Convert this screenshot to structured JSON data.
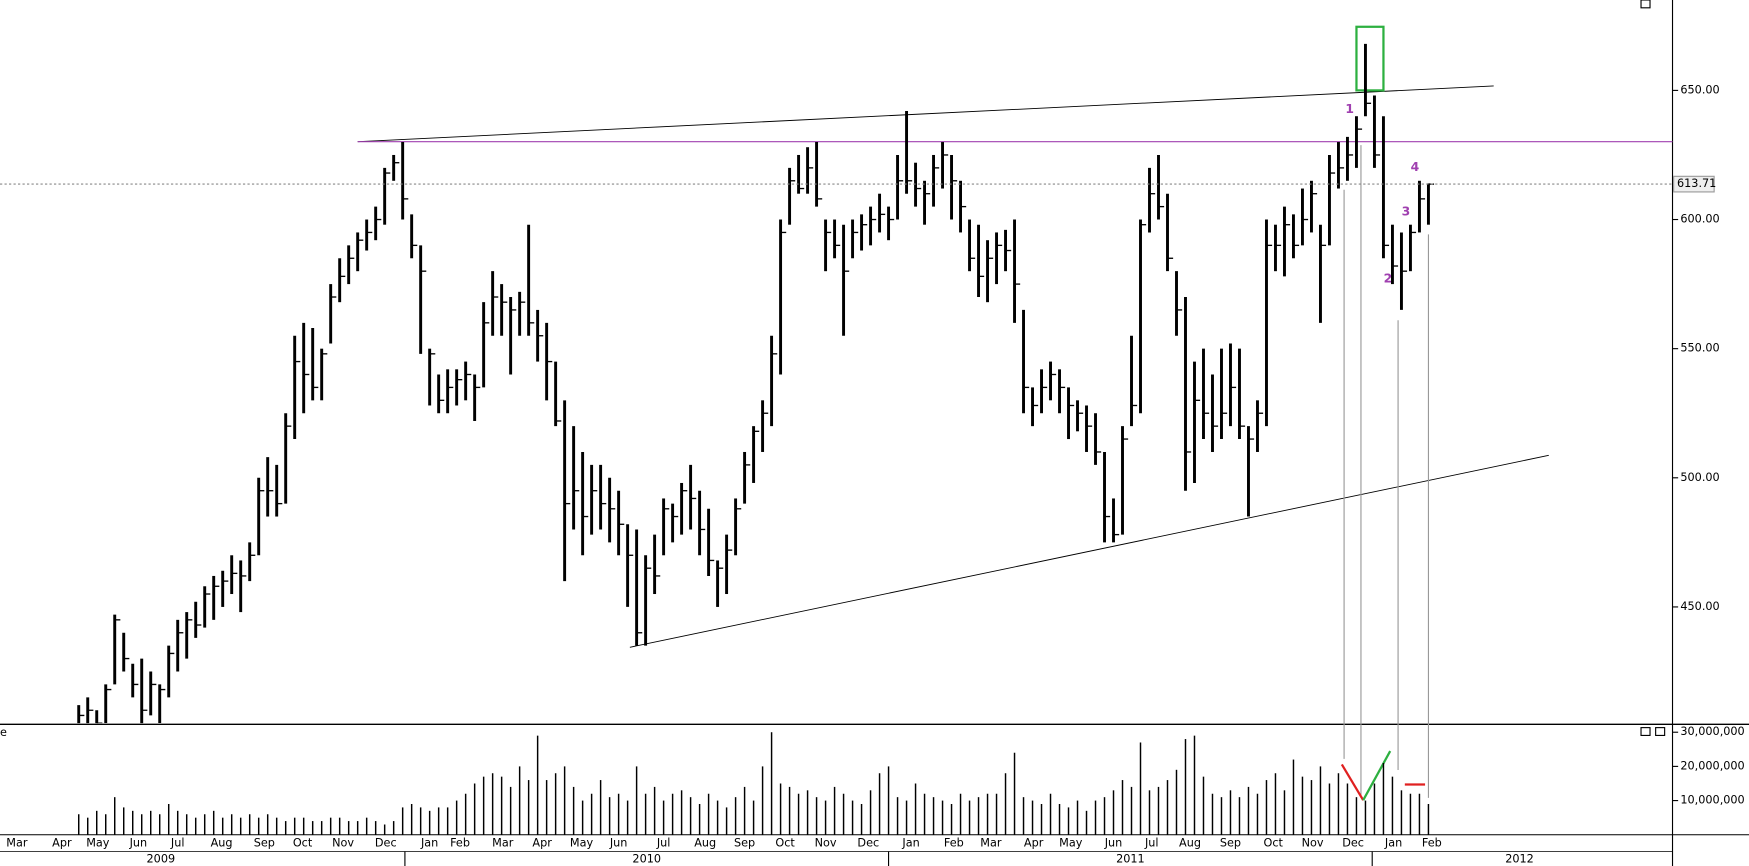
{
  "chart_data": [
    {
      "type": "ohlc",
      "high": [
        412,
        415,
        410,
        420,
        447,
        440,
        428,
        430,
        425,
        420,
        435,
        445,
        448,
        452,
        458,
        462,
        464,
        470,
        468,
        475,
        500,
        508,
        505,
        525,
        555,
        560,
        558,
        550,
        575,
        585,
        590,
        595,
        600,
        605,
        620,
        625,
        630,
        602,
        590,
        550,
        540,
        542,
        542,
        545,
        540,
        568,
        580,
        575,
        570,
        572,
        598,
        565,
        560,
        545,
        530,
        520,
        510,
        505,
        505,
        500,
        495,
        482,
        480,
        470,
        478,
        492,
        490,
        498,
        505,
        495,
        488,
        468,
        478,
        492,
        510,
        520,
        530,
        555,
        600,
        620,
        625,
        628,
        630,
        600,
        600,
        598,
        600,
        602,
        605,
        610,
        605,
        625,
        642,
        622,
        615,
        625,
        630,
        625,
        615,
        600,
        598,
        592,
        595,
        596,
        600,
        565,
        535,
        542,
        545,
        542,
        535,
        530,
        528,
        525,
        510,
        492,
        520,
        555,
        600,
        620,
        625,
        610,
        580,
        570,
        545,
        550,
        540,
        550,
        552,
        550,
        520,
        530,
        600,
        598,
        605,
        602,
        612,
        615,
        598,
        625,
        630,
        632,
        640,
        668,
        648,
        640,
        598,
        595,
        598,
        615,
        614
      ],
      "low": [
        400,
        400,
        400,
        405,
        420,
        425,
        415,
        400,
        408,
        405,
        415,
        425,
        430,
        438,
        442,
        445,
        450,
        455,
        448,
        460,
        470,
        485,
        485,
        490,
        515,
        525,
        530,
        530,
        552,
        568,
        575,
        580,
        588,
        592,
        598,
        615,
        600,
        585,
        548,
        528,
        525,
        525,
        528,
        530,
        522,
        535,
        555,
        555,
        540,
        555,
        555,
        545,
        530,
        520,
        460,
        480,
        470,
        478,
        480,
        475,
        470,
        450,
        435,
        435,
        455,
        470,
        475,
        478,
        480,
        470,
        462,
        450,
        455,
        470,
        490,
        498,
        510,
        520,
        540,
        598,
        610,
        610,
        605,
        580,
        585,
        555,
        585,
        588,
        590,
        595,
        592,
        600,
        610,
        605,
        598,
        605,
        612,
        600,
        595,
        580,
        570,
        568,
        575,
        580,
        560,
        525,
        520,
        525,
        530,
        525,
        515,
        518,
        510,
        505,
        475,
        475,
        478,
        520,
        525,
        595,
        600,
        580,
        555,
        495,
        498,
        515,
        510,
        515,
        520,
        515,
        485,
        510,
        520,
        580,
        578,
        585,
        590,
        595,
        560,
        590,
        612,
        615,
        620,
        640,
        620,
        585,
        575,
        565,
        580,
        595,
        598
      ],
      "close": [
        408,
        410,
        405,
        418,
        445,
        430,
        420,
        410,
        420,
        418,
        432,
        440,
        445,
        443,
        455,
        458,
        460,
        463,
        462,
        470,
        495,
        495,
        490,
        520,
        545,
        540,
        535,
        548,
        570,
        578,
        585,
        592,
        595,
        600,
        618,
        622,
        608,
        590,
        580,
        548,
        530,
        535,
        538,
        540,
        535,
        560,
        570,
        568,
        565,
        568,
        560,
        555,
        545,
        522,
        490,
        495,
        485,
        495,
        490,
        488,
        482,
        470,
        440,
        465,
        462,
        488,
        485,
        495,
        492,
        480,
        468,
        465,
        472,
        488,
        505,
        518,
        525,
        548,
        595,
        615,
        612,
        620,
        608,
        595,
        590,
        580,
        595,
        598,
        600,
        602,
        600,
        615,
        615,
        612,
        610,
        620,
        625,
        615,
        605,
        585,
        578,
        585,
        590,
        588,
        575,
        535,
        528,
        535,
        540,
        535,
        528,
        525,
        520,
        510,
        485,
        478,
        515,
        528,
        598,
        610,
        605,
        585,
        565,
        510,
        530,
        525,
        520,
        525,
        535,
        520,
        515,
        525,
        590,
        590,
        598,
        590,
        600,
        610,
        590,
        618,
        620,
        625,
        635,
        645,
        625,
        590,
        582,
        580,
        595,
        608,
        613.71
      ],
      "color": "#000000",
      "ylim": [
        405,
        685
      ],
      "yticks": [
        {
          "value": 450,
          "label": "450.00"
        },
        {
          "value": 500,
          "label": "500.00"
        },
        {
          "value": 550,
          "label": "550.00"
        },
        {
          "value": 600,
          "label": "600.00"
        },
        {
          "value": 650,
          "label": "650.00"
        }
      ],
      "annotations": [
        "1",
        "2",
        "3",
        "4"
      ]
    },
    {
      "type": "bar",
      "label": "e",
      "values": [
        6000000,
        5000000,
        7000000,
        6000000,
        11000000,
        8000000,
        7000000,
        6000000,
        7000000,
        6000000,
        9000000,
        7000000,
        6000000,
        5000000,
        6000000,
        7000000,
        5000000,
        6000000,
        5000000,
        6000000,
        5000000,
        6000000,
        5000000,
        4000000,
        5000000,
        5000000,
        4000000,
        4000000,
        5000000,
        5000000,
        4000000,
        4000000,
        5000000,
        4000000,
        3000000,
        4000000,
        8000000,
        9000000,
        8000000,
        7000000,
        8000000,
        8000000,
        10000000,
        12000000,
        15000000,
        17000000,
        18000000,
        17000000,
        14000000,
        20000000,
        16000000,
        29000000,
        16000000,
        18000000,
        20000000,
        14000000,
        10000000,
        12000000,
        16000000,
        11000000,
        12000000,
        10000000,
        20000000,
        12000000,
        14000000,
        10000000,
        12000000,
        13000000,
        11000000,
        9000000,
        12000000,
        10000000,
        8000000,
        11000000,
        14000000,
        10000000,
        20000000,
        30000000,
        15000000,
        14000000,
        12000000,
        13000000,
        11000000,
        10000000,
        14000000,
        12000000,
        10000000,
        9000000,
        13000000,
        18000000,
        20000000,
        11000000,
        10000000,
        15000000,
        12000000,
        11000000,
        10000000,
        9000000,
        12000000,
        10000000,
        11000000,
        12000000,
        12000000,
        18000000,
        24000000,
        11000000,
        10000000,
        9000000,
        12000000,
        9000000,
        8000000,
        10000000,
        7000000,
        10000000,
        11000000,
        13000000,
        16000000,
        14000000,
        27000000,
        13000000,
        14000000,
        16000000,
        19000000,
        28000000,
        29000000,
        17000000,
        12000000,
        11000000,
        13000000,
        11000000,
        14000000,
        12000000,
        16000000,
        18000000,
        13000000,
        22000000,
        17000000,
        16000000,
        20000000,
        15000000,
        18000000,
        15000000,
        11000000,
        10000000,
        15000000,
        21000000,
        17000000,
        13000000,
        12000000,
        12000000,
        9000000
      ],
      "color": "#000000",
      "ylim": [
        0,
        32000000
      ],
      "yticks": [
        {
          "value": 10000000,
          "label": "10,000,000"
        },
        {
          "value": 20000000,
          "label": "20,000,000"
        },
        {
          "value": 30000000,
          "label": "30,000,000"
        }
      ],
      "xlim": [
        -8.75,
        177.125
      ],
      "xticks": [
        {
          "value": -6.875,
          "label": "Mar"
        },
        {
          "value": -1.875,
          "label": "Apr"
        },
        {
          "value": 2.125,
          "label": "May"
        },
        {
          "value": 6.625,
          "label": "Jun"
        },
        {
          "value": 11,
          "label": "Jul"
        },
        {
          "value": 15.875,
          "label": "Aug"
        },
        {
          "value": 20.625,
          "label": "Sep"
        },
        {
          "value": 24.875,
          "label": "Oct"
        },
        {
          "value": 29.375,
          "label": "Nov"
        },
        {
          "value": 34.125,
          "label": "Dec"
        },
        {
          "value": 39,
          "label": "Jan"
        },
        {
          "value": 42.375,
          "label": "Feb"
        },
        {
          "value": 47.125,
          "label": "Mar"
        },
        {
          "value": 51.5,
          "label": "Apr"
        },
        {
          "value": 55.875,
          "label": "May"
        },
        {
          "value": 60,
          "label": "Jun"
        },
        {
          "value": 65,
          "label": "Jul"
        },
        {
          "value": 69.625,
          "label": "Aug"
        },
        {
          "value": 74,
          "label": "Sep"
        },
        {
          "value": 78.5,
          "label": "Oct"
        },
        {
          "value": 83,
          "label": "Nov"
        },
        {
          "value": 87.75,
          "label": "Dec"
        },
        {
          "value": 92.5,
          "label": "Jan"
        },
        {
          "value": 97.25,
          "label": "Feb"
        },
        {
          "value": 101.375,
          "label": "Mar"
        },
        {
          "value": 106.125,
          "label": "Apr"
        },
        {
          "value": 110.25,
          "label": "May"
        },
        {
          "value": 115,
          "label": "Jun"
        },
        {
          "value": 119.25,
          "label": "Jul"
        },
        {
          "value": 123.5,
          "label": "Aug"
        },
        {
          "value": 128,
          "label": "Sep"
        },
        {
          "value": 132.75,
          "label": "Oct"
        },
        {
          "value": 137.125,
          "label": "Nov"
        },
        {
          "value": 141.625,
          "label": "Dec"
        },
        {
          "value": 146.125,
          "label": "Jan"
        },
        {
          "value": 150.375,
          "label": "Feb"
        }
      ],
      "year_ticks": [
        {
          "value": 9.125,
          "label": "2009"
        },
        {
          "value": 63.125,
          "label": "2010"
        },
        {
          "value": 116.875,
          "label": "2011"
        },
        {
          "value": 160.125,
          "label": "2012"
        }
      ]
    }
  ]
}
